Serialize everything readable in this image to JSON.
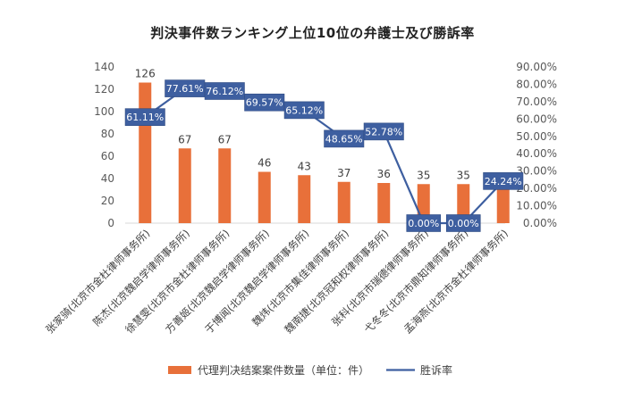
{
  "chart_data": {
    "type": "bar",
    "title": "判決事件数ランキング上位10位の弁護士及び勝訴率",
    "categories": [
      "张家骑(北京市金杜律师事务所)",
      "陈杰(北京魏启学律师事务所)",
      "徐慧雯(北京市金杜律师事务所)",
      "方善姬(北京魏启学律师事务所)",
      "于博闻(北京魏启学律师事务所)",
      "魏炜(北京市集佳律师事务所)",
      "魏南捷(北京冠和权律师事务所)",
      "张科(北京市瑞德律师事务所)",
      "弋冬冬(北京市鼎知律师事务所)",
      "孟海燕(北京市金杜律师事务所)"
    ],
    "series": [
      {
        "name": "代理判决结案案件数量（单位：件）",
        "axis": "left",
        "color": "#E8703A",
        "values": [
          126,
          67,
          67,
          46,
          43,
          37,
          36,
          35,
          35,
          33
        ]
      },
      {
        "name": "胜诉率",
        "axis": "right",
        "color": "#4472C4",
        "type": "line",
        "values": [
          61.11,
          77.61,
          76.12,
          69.57,
          65.12,
          48.65,
          52.78,
          0.0,
          0.0,
          24.24
        ],
        "labels": [
          "61.11%",
          "77.61%",
          "76.12%",
          "69.57%",
          "65.12%",
          "48.65%",
          "52.78%",
          "0.00%",
          "0.00%",
          "24.24%"
        ]
      }
    ],
    "y_left": {
      "min": 0,
      "max": 140,
      "ticks": [
        "0",
        "20",
        "40",
        "60",
        "80",
        "100",
        "120",
        "140"
      ]
    },
    "y_right": {
      "min": 0,
      "max": 90,
      "ticks": [
        "0.00%",
        "10.00%",
        "20.00%",
        "30.00%",
        "40.00%",
        "50.00%",
        "60.00%",
        "70.00%",
        "80.00%",
        "90.00%"
      ]
    },
    "grid": false,
    "legend": "bottom"
  }
}
